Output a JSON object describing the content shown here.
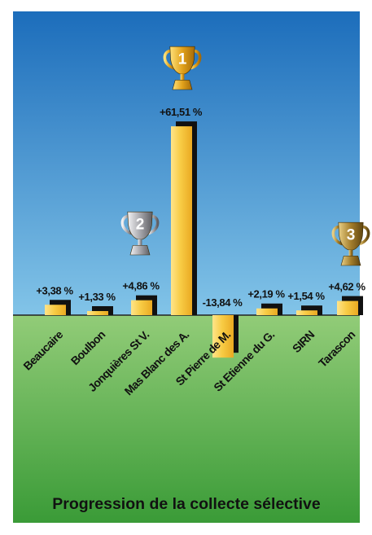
{
  "chart_data": {
    "type": "bar",
    "title": "Progression de la collecte sélective",
    "categories": [
      "Beaucaire",
      "Boulbon",
      "Jonquières St V.",
      "Mas Blanc des A.",
      "St Pierre de M.",
      "St Etienne du G.",
      "SIRN",
      "Tarascon"
    ],
    "values": [
      3.38,
      1.33,
      4.86,
      61.51,
      -13.84,
      2.19,
      1.54,
      4.62
    ],
    "value_labels": [
      "+3,38 %",
      "+1,33 %",
      "+4,86 %",
      "+61,51 %",
      "-13,84 %",
      "+2,19 %",
      "+1,54 %",
      "+4,62 %"
    ],
    "ranking": [
      {
        "category": "Mas Blanc des A.",
        "rank": "1",
        "trophy": "gold-trophy-icon"
      },
      {
        "category": "Jonquières St V.",
        "rank": "2",
        "trophy": "silver-trophy-icon"
      },
      {
        "category": "Tarascon",
        "rank": "3",
        "trophy": "bronze-trophy-icon"
      }
    ],
    "xlabel": "",
    "ylabel": "",
    "grid": false,
    "legend": "none",
    "colors": {
      "bar": "#f5c33b",
      "bar_highlight": "#ffe48a",
      "bar_shadow": "#111111",
      "sky_top": "#1c6dbb",
      "sky_bottom": "#82c4e8",
      "ground_top": "#92cc78",
      "ground_bottom": "#3a9b37",
      "gold": "#e2a21c",
      "silver": "#a8a8ad",
      "bronze": "#a47e2c"
    }
  }
}
